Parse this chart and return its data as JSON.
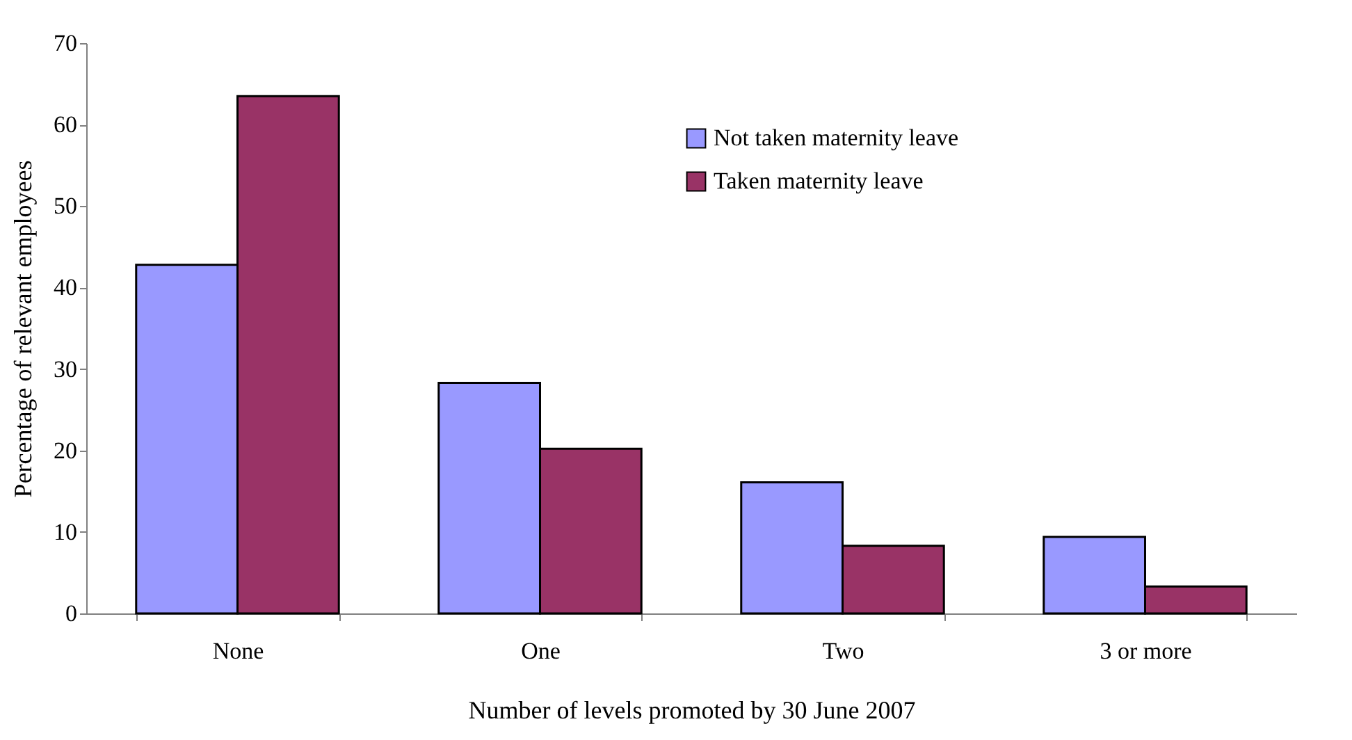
{
  "chart_data": {
    "type": "bar",
    "xlabel": "Number of levels promoted by 30 June 2007",
    "ylabel": "Percentage of relevant employees",
    "categories": [
      "None",
      "One",
      "Two",
      "3 or more"
    ],
    "series": [
      {
        "name": "Not taken maternity leave",
        "color": "#9999ff",
        "values": [
          42.8,
          28.3,
          16.1,
          9.4
        ]
      },
      {
        "name": "Taken maternity leave",
        "color": "#993366",
        "values": [
          63.5,
          20.2,
          8.3,
          3.3
        ]
      }
    ],
    "ylim": [
      0,
      70
    ],
    "yticks": [
      0,
      10,
      20,
      30,
      40,
      50,
      60,
      70
    ],
    "grid": false,
    "legend": "top right"
  }
}
